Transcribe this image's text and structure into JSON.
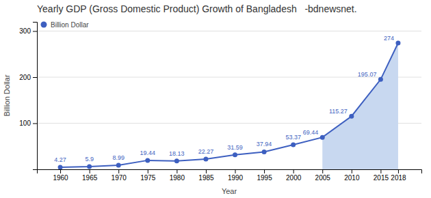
{
  "chart_data": {
    "type": "line",
    "title": "Yearly GDP (Gross Domestic Product) Growth of Bangladesh   -bdnewsnet.",
    "x_label": "Year",
    "y_label": "Billion Dollar",
    "x": [
      1960,
      1965,
      1970,
      1975,
      1980,
      1985,
      1990,
      1995,
      2000,
      2005,
      2010,
      2015,
      2018
    ],
    "series": [
      {
        "name": "Billion Dollar",
        "type": "line",
        "color": "#3d5fc0",
        "marker": "circle",
        "values": [
          4.27,
          5.9,
          8.99,
          19.44,
          18.13,
          22.27,
          31.59,
          37.94,
          53.37,
          69.44,
          115.27,
          195.07,
          274.0
        ]
      },
      {
        "type": "area",
        "color": "#c8d8f0",
        "values": [
          null,
          null,
          null,
          null,
          null,
          null,
          null,
          null,
          null,
          69.44,
          115.27,
          195.07,
          274.0
        ]
      }
    ],
    "xlim": [
      1956,
      2022
    ],
    "xticks": [
      1960,
      1965,
      1970,
      1975,
      1980,
      1985,
      1990,
      1995,
      2000,
      2005,
      2010,
      2015,
      2018
    ],
    "ylim": [
      0,
      320
    ],
    "yticks": [
      100,
      200,
      300
    ],
    "grid": true,
    "legend": "upper left",
    "data_labels": true
  }
}
